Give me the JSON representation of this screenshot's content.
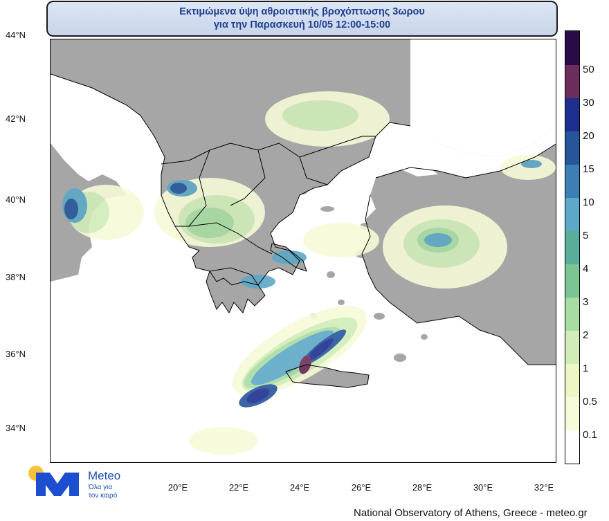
{
  "title": {
    "line1": "Εκτιμώμενα ύψη αθροιστικής βροχόπτωσης 3ωρου",
    "line2": "για την Παρασκευή 10/05 12:00-15:00"
  },
  "map": {
    "latitude_labels": [
      "44°N",
      "42°N",
      "40°N",
      "38°N",
      "36°N",
      "34°N"
    ],
    "longitude_labels": [
      "20°E",
      "22°E",
      "24°E",
      "26°E",
      "28°E",
      "30°E",
      "32°E"
    ],
    "land_color": "#a6a6a6",
    "sea_color": "#ffffff",
    "border_color": "#000000"
  },
  "colorbar": {
    "labels": [
      "50",
      "30",
      "20",
      "15",
      "10",
      "5",
      "4",
      "3",
      "2",
      "1",
      "0.5",
      "0.1"
    ],
    "colors": [
      "#2a0a47",
      "#6b2d5c",
      "#1e2f8f",
      "#27559a",
      "#3d7fb4",
      "#5ca8c6",
      "#59ae9a",
      "#7cc494",
      "#a7dca3",
      "#d1ecb8",
      "#eef6c6",
      "#f7fbd9",
      "#ffffff"
    ]
  },
  "logo": {
    "word": "Meteo",
    "tagline_line1": "Όλα για",
    "tagline_line2": "τον καιρό",
    "icon": "meteo-m-sun-logo"
  },
  "footer": "National Observatory of Athens, Greece - meteo.gr"
}
